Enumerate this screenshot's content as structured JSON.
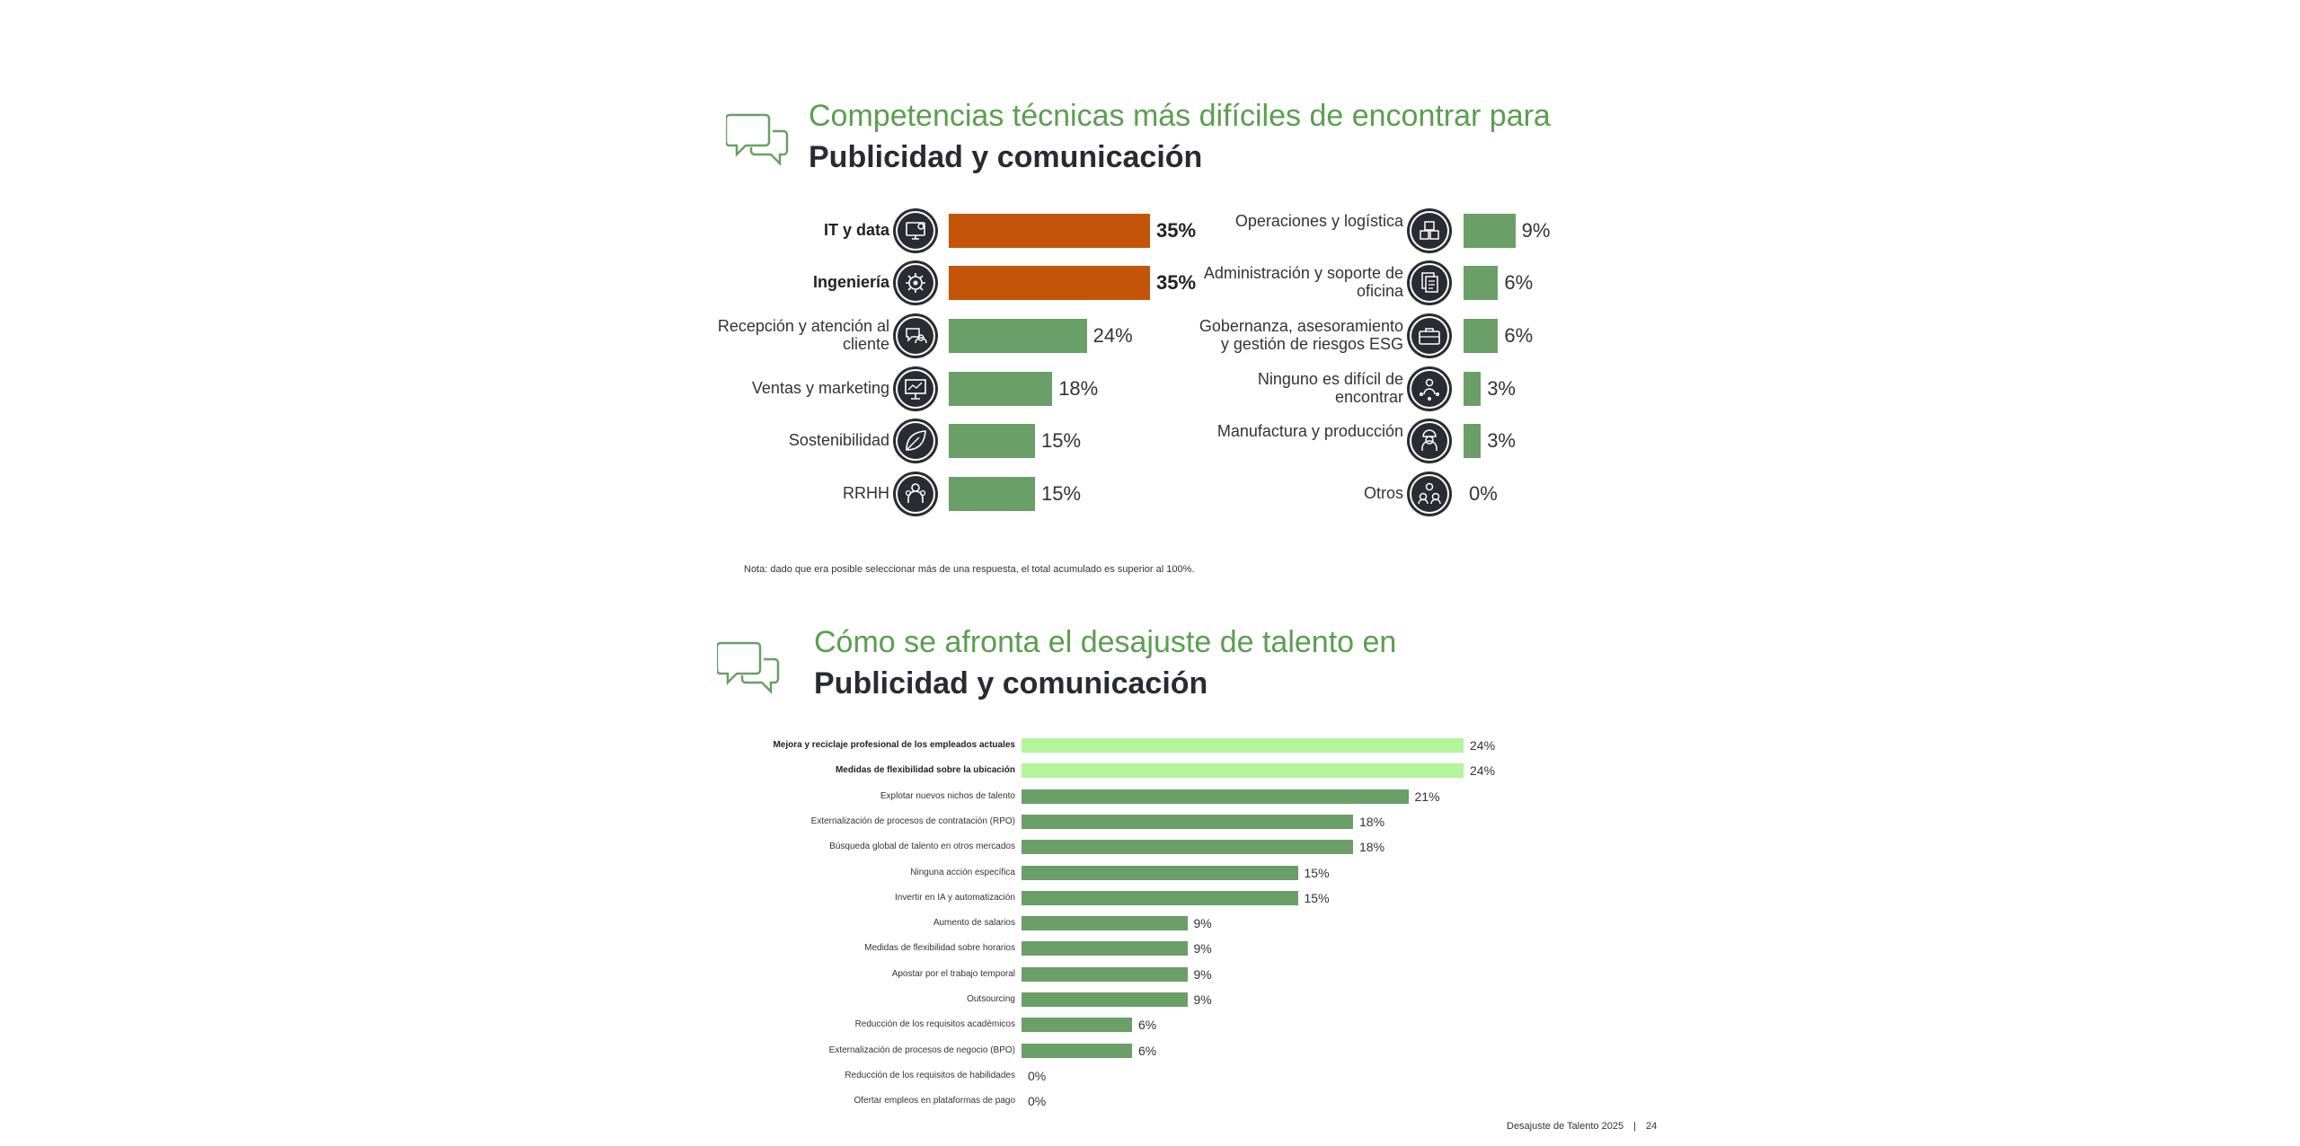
{
  "section1": {
    "title_line1": "Competencias técnicas más difíciles de encontrar para",
    "title_line2": "Publicidad y comunicación",
    "note": "Nota: dado que era posible seleccionar más de una respuesta, el total acumulado es superior al 100%."
  },
  "section2": {
    "title_line1": "Cómo se afronta el desajuste de talento en",
    "title_line2": "Publicidad y comunicación"
  },
  "footer": {
    "text": "Desajuste de Talento 2025",
    "separator": "|",
    "page": "24"
  },
  "colors": {
    "highlight_orange": "#c45508",
    "green": "#6a9f67",
    "highlight_light_green": "#b3f59a",
    "title_green": "#5b9e4f"
  },
  "chart_data": [
    {
      "type": "bar",
      "orientation": "horizontal",
      "layout": "two-columns",
      "max_value": 35,
      "items": [
        {
          "label": "IT y data",
          "value": 35,
          "display": "35%",
          "highlight": true,
          "icon": "computer-gear-icon"
        },
        {
          "label": "Ingeniería",
          "value": 35,
          "display": "35%",
          "highlight": true,
          "icon": "gear-icon"
        },
        {
          "label": "Recepción y atención al cliente",
          "value": 24,
          "display": "24%",
          "highlight": false,
          "icon": "chat-headset-icon"
        },
        {
          "label": "Ventas y marketing",
          "value": 18,
          "display": "18%",
          "highlight": false,
          "icon": "presentation-board-icon"
        },
        {
          "label": "Sostenibilidad",
          "value": 15,
          "display": "15%",
          "highlight": false,
          "icon": "leaf-icon"
        },
        {
          "label": "RRHH",
          "value": 15,
          "display": "15%",
          "highlight": false,
          "icon": "people-icon"
        },
        {
          "label": "Operaciones y logística",
          "value": 9,
          "display": "9%",
          "highlight": false,
          "icon": "boxes-icon"
        },
        {
          "label": "Administración y soporte de oficina",
          "value": 6,
          "display": "6%",
          "highlight": false,
          "icon": "documents-icon"
        },
        {
          "label": "Gobernanza, asesoramiento y gestión de riesgos ESG",
          "value": 6,
          "display": "6%",
          "highlight": false,
          "icon": "briefcase-icon"
        },
        {
          "label": "Ninguno es difícil de encontrar",
          "value": 3,
          "display": "3%",
          "highlight": false,
          "icon": "person-network-icon"
        },
        {
          "label": "Manufactura y producción",
          "value": 3,
          "display": "3%",
          "highlight": false,
          "icon": "worker-icon"
        },
        {
          "label": "Otros",
          "value": 0,
          "display": "0%",
          "highlight": false,
          "icon": "group-icon"
        }
      ]
    },
    {
      "type": "bar",
      "orientation": "horizontal",
      "max_value": 24,
      "items": [
        {
          "label": "Mejora y reciclaje profesional de los empleados actuales",
          "value": 24,
          "display": "24%",
          "highlight": true
        },
        {
          "label": "Medidas de flexibilidad sobre la ubicación",
          "value": 24,
          "display": "24%",
          "highlight": true
        },
        {
          "label": "Explotar nuevos nichos de talento",
          "value": 21,
          "display": "21%",
          "highlight": false
        },
        {
          "label": "Externalización de procesos de contratación (RPO)",
          "value": 18,
          "display": "18%",
          "highlight": false
        },
        {
          "label": "Búsqueda global de talento en otros mercados",
          "value": 18,
          "display": "18%",
          "highlight": false
        },
        {
          "label": "Ninguna acción específica",
          "value": 15,
          "display": "15%",
          "highlight": false
        },
        {
          "label": "Invertir en IA y automatización",
          "value": 15,
          "display": "15%",
          "highlight": false
        },
        {
          "label": "Aumento de salarios",
          "value": 9,
          "display": "9%",
          "highlight": false
        },
        {
          "label": "Medidas de flexibilidad sobre horarios",
          "value": 9,
          "display": "9%",
          "highlight": false
        },
        {
          "label": "Apostar por el trabajo temporal",
          "value": 9,
          "display": "9%",
          "highlight": false
        },
        {
          "label": "Outsourcing",
          "value": 9,
          "display": "9%",
          "highlight": false
        },
        {
          "label": "Reducción de los requisitos académicos",
          "value": 6,
          "display": "6%",
          "highlight": false
        },
        {
          "label": "Externalización de procesos de negocio (BPO)",
          "value": 6,
          "display": "6%",
          "highlight": false
        },
        {
          "label": "Reducción de los requisitos de habilidades",
          "value": 0,
          "display": "0%",
          "highlight": false
        },
        {
          "label": "Ofertar empleos en plataformas de pago",
          "value": 0,
          "display": "0%",
          "highlight": false
        }
      ]
    }
  ]
}
